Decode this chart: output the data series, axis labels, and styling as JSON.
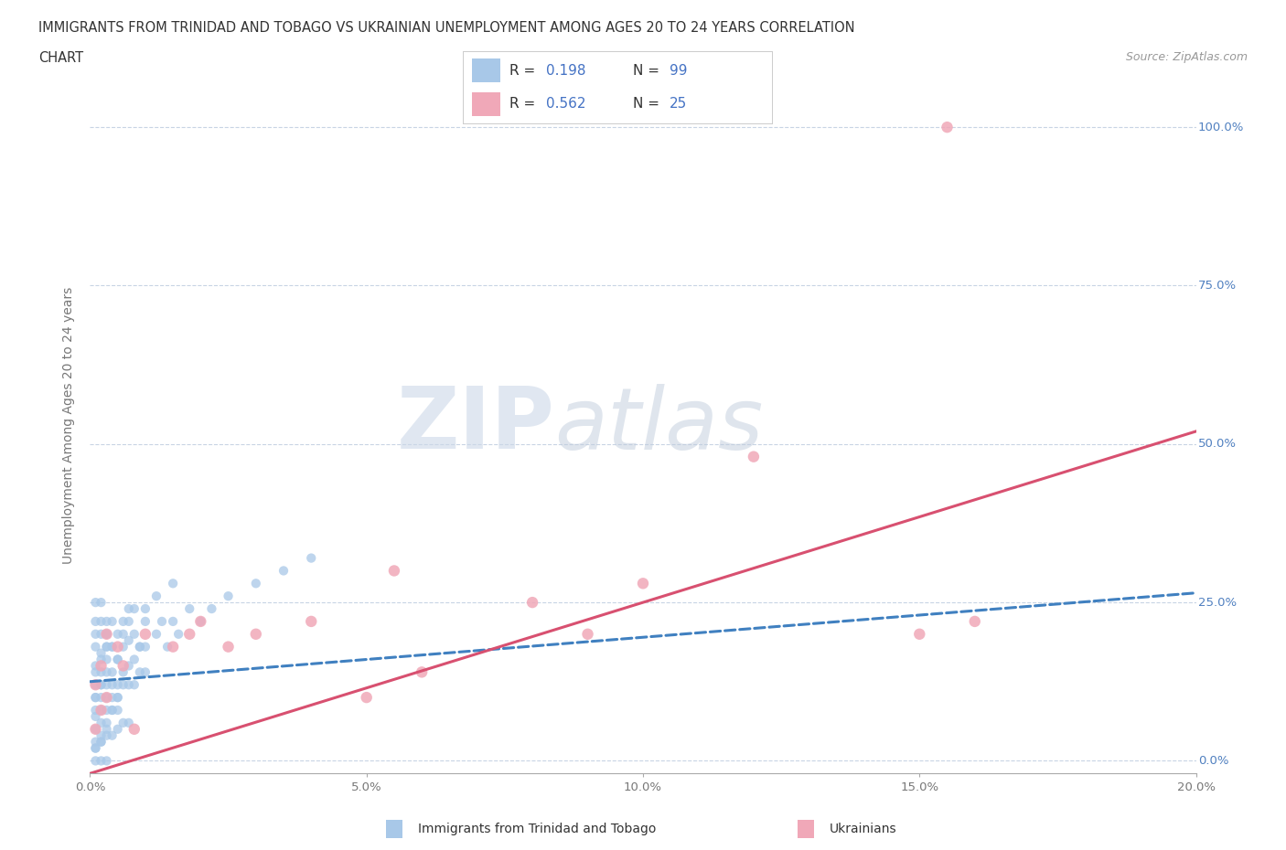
{
  "title_line1": "IMMIGRANTS FROM TRINIDAD AND TOBAGO VS UKRAINIAN UNEMPLOYMENT AMONG AGES 20 TO 24 YEARS CORRELATION",
  "title_line2": "CHART",
  "source_text": "Source: ZipAtlas.com",
  "ylabel": "Unemployment Among Ages 20 to 24 years",
  "xlim": [
    0.0,
    0.2
  ],
  "ylim": [
    -0.02,
    1.08
  ],
  "xtick_labels": [
    "0.0%",
    "5.0%",
    "10.0%",
    "15.0%",
    "20.0%"
  ],
  "xtick_values": [
    0.0,
    0.05,
    0.1,
    0.15,
    0.2
  ],
  "ytick_labels": [
    "0.0%",
    "25.0%",
    "50.0%",
    "75.0%",
    "100.0%"
  ],
  "ytick_values": [
    0.0,
    0.25,
    0.5,
    0.75,
    1.0
  ],
  "blue_R": 0.198,
  "blue_N": 99,
  "pink_R": 0.562,
  "pink_N": 25,
  "blue_color": "#a8c8e8",
  "pink_color": "#f0a8b8",
  "blue_line_color": "#4080c0",
  "pink_line_color": "#d85070",
  "legend_blue_label": "Immigrants from Trinidad and Tobago",
  "legend_pink_label": "Ukrainians",
  "watermark_zip": "ZIP",
  "watermark_atlas": "atlas",
  "background_color": "#ffffff",
  "grid_color": "#c8d4e4",
  "blue_trend_x0": 0.0,
  "blue_trend_y0": 0.125,
  "blue_trend_x1": 0.2,
  "blue_trend_y1": 0.265,
  "pink_trend_x0": 0.0,
  "pink_trend_y0": -0.02,
  "pink_trend_x1": 0.2,
  "pink_trend_y1": 0.52,
  "blue_scatter_x": [
    0.001,
    0.001,
    0.001,
    0.001,
    0.001,
    0.001,
    0.001,
    0.001,
    0.001,
    0.001,
    0.002,
    0.002,
    0.002,
    0.002,
    0.002,
    0.002,
    0.002,
    0.002,
    0.002,
    0.003,
    0.003,
    0.003,
    0.003,
    0.003,
    0.003,
    0.003,
    0.003,
    0.004,
    0.004,
    0.004,
    0.004,
    0.004,
    0.004,
    0.005,
    0.005,
    0.005,
    0.005,
    0.005,
    0.006,
    0.006,
    0.006,
    0.006,
    0.007,
    0.007,
    0.007,
    0.007,
    0.008,
    0.008,
    0.008,
    0.009,
    0.009,
    0.01,
    0.01,
    0.01,
    0.012,
    0.013,
    0.014,
    0.015,
    0.016,
    0.018,
    0.02,
    0.022,
    0.025,
    0.001,
    0.002,
    0.003,
    0.03,
    0.035,
    0.04,
    0.001,
    0.002,
    0.003,
    0.004,
    0.005,
    0.006,
    0.007,
    0.008,
    0.009,
    0.01,
    0.012,
    0.015,
    0.001,
    0.002,
    0.003,
    0.004,
    0.005,
    0.006,
    0.007,
    0.001,
    0.002,
    0.003,
    0.004,
    0.005,
    0.001,
    0.002,
    0.003,
    0.001,
    0.002,
    0.003
  ],
  "blue_scatter_y": [
    0.05,
    0.08,
    0.12,
    0.15,
    0.18,
    0.1,
    0.2,
    0.07,
    0.03,
    0.22,
    0.06,
    0.1,
    0.14,
    0.17,
    0.2,
    0.08,
    0.25,
    0.03,
    0.12,
    0.08,
    0.12,
    0.16,
    0.2,
    0.1,
    0.18,
    0.05,
    0.22,
    0.1,
    0.14,
    0.18,
    0.08,
    0.22,
    0.12,
    0.12,
    0.16,
    0.1,
    0.2,
    0.08,
    0.14,
    0.18,
    0.12,
    0.22,
    0.15,
    0.19,
    0.12,
    0.24,
    0.16,
    0.2,
    0.12,
    0.18,
    0.14,
    0.18,
    0.22,
    0.14,
    0.2,
    0.22,
    0.18,
    0.22,
    0.2,
    0.24,
    0.22,
    0.24,
    0.26,
    0.0,
    0.0,
    0.0,
    0.28,
    0.3,
    0.32,
    0.25,
    0.22,
    0.2,
    0.18,
    0.16,
    0.2,
    0.22,
    0.24,
    0.18,
    0.24,
    0.26,
    0.28,
    0.02,
    0.03,
    0.04,
    0.04,
    0.05,
    0.06,
    0.06,
    0.02,
    0.04,
    0.06,
    0.08,
    0.1,
    0.1,
    0.12,
    0.14,
    0.14,
    0.16,
    0.18
  ],
  "pink_scatter_x": [
    0.001,
    0.001,
    0.002,
    0.002,
    0.003,
    0.003,
    0.005,
    0.006,
    0.008,
    0.01,
    0.015,
    0.018,
    0.02,
    0.025,
    0.03,
    0.04,
    0.05,
    0.055,
    0.06,
    0.08,
    0.09,
    0.1,
    0.12,
    0.15,
    0.16
  ],
  "pink_scatter_y": [
    0.05,
    0.12,
    0.08,
    0.15,
    0.1,
    0.2,
    0.18,
    0.15,
    0.05,
    0.2,
    0.18,
    0.2,
    0.22,
    0.18,
    0.2,
    0.22,
    0.1,
    0.3,
    0.14,
    0.25,
    0.2,
    0.28,
    0.48,
    0.2,
    0.22
  ]
}
